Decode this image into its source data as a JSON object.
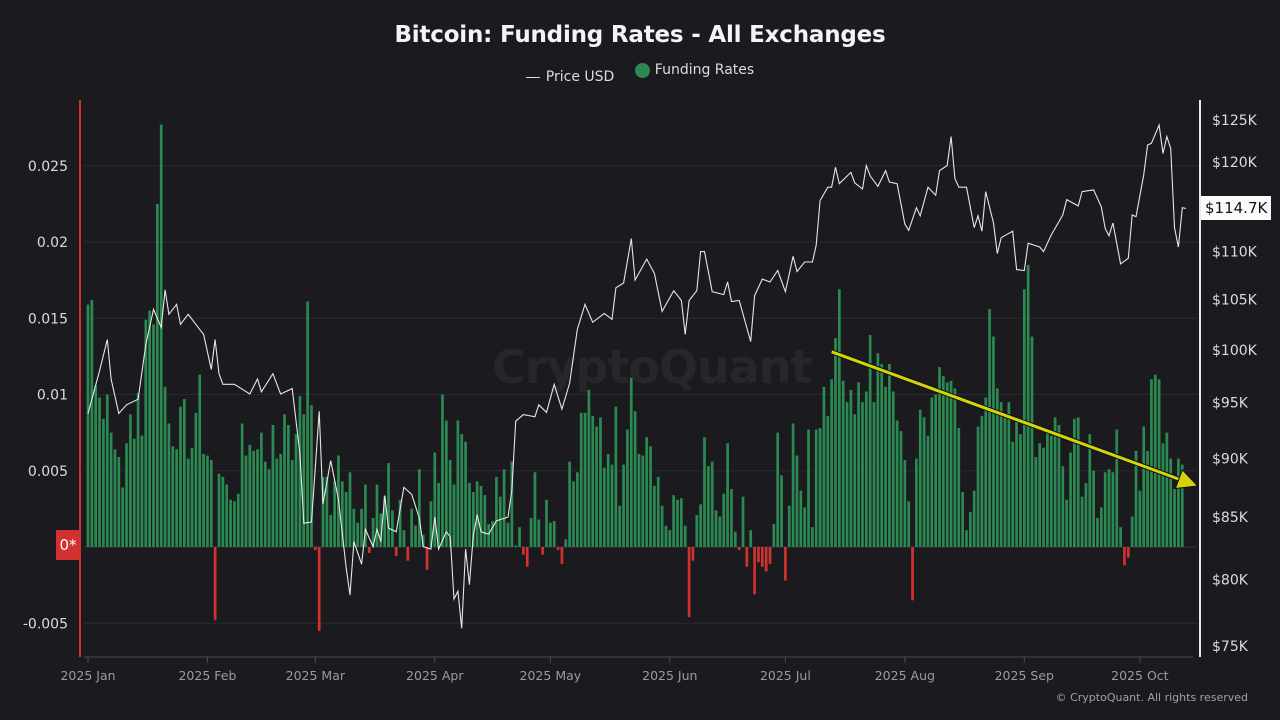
{
  "chart_data": {
    "type": "bar+line",
    "title": "Bitcoin: Funding Rates - All Exchanges",
    "legend": {
      "placement": "top-center",
      "entries": [
        {
          "label": "Price USD",
          "marker": "line",
          "color": "#e6e6e6"
        },
        {
          "label": "Funding Rates",
          "marker": "dot",
          "color": "#2b8a52"
        }
      ]
    },
    "colors": {
      "positive": "#2b8a52",
      "negative": "#d1312f",
      "price": "#e6e6e6",
      "trend_annotation": "#d4d40c",
      "background": "#1b1b1f"
    },
    "x_ticks": [
      "2025 Jan",
      "2025 Feb",
      "2025 Mar",
      "2025 Apr",
      "2025 May",
      "2025 Jun",
      "2025 Jul",
      "2025 Aug",
      "2025 Sep",
      "2025 Oct"
    ],
    "left_axis": {
      "ylim": [
        -0.0073,
        0.0293
      ],
      "ticks": [
        "0.025",
        "0.02",
        "0.015",
        "0.01",
        "0.005",
        "-0.005"
      ],
      "tick_values": [
        0.025,
        0.02,
        0.015,
        0.01,
        0.005,
        -0.005
      ],
      "zero_label": "0*"
    },
    "right_axis": {
      "scale": "log",
      "ylim": [
        75000,
        125000
      ],
      "ticks": [
        "$125K",
        "$120K",
        "$110K",
        "$105K",
        "$100K",
        "$95K",
        "$90K",
        "$85K",
        "$80K",
        "$75K"
      ],
      "tick_values": [
        125000,
        120000,
        110000,
        105000,
        100000,
        95000,
        90000,
        85000,
        80000,
        75000
      ],
      "current_label": "$114.7K",
      "current_value": 114700
    },
    "grid": true,
    "funding_rates": {
      "period": "daily",
      "first_date": "2025-01-01",
      "values": [
        0.0159,
        0.0162,
        0.0106,
        0.0098,
        0.0084,
        0.01,
        0.0075,
        0.0064,
        0.0059,
        0.0039,
        0.0068,
        0.0087,
        0.0071,
        0.0101,
        0.0073,
        0.0149,
        0.0155,
        0.0146,
        0.0225,
        0.0277,
        0.0105,
        0.0081,
        0.0066,
        0.0064,
        0.0092,
        0.0097,
        0.0058,
        0.0065,
        0.0088,
        0.0113,
        0.0061,
        0.006,
        0.0057,
        -0.0048,
        0.0048,
        0.0046,
        0.0041,
        0.0031,
        0.003,
        0.0035,
        0.0081,
        0.006,
        0.0067,
        0.0063,
        0.0064,
        0.0075,
        0.0056,
        0.0051,
        0.008,
        0.0058,
        0.0061,
        0.0087,
        0.008,
        0.0057,
        0.0074,
        0.0099,
        0.0087,
        0.0161,
        0.0093,
        -0.0002,
        -0.0055,
        0.0046,
        0.0046,
        0.0021,
        0.0043,
        0.006,
        0.0043,
        0.0036,
        0.0049,
        0.0025,
        0.0016,
        0.0025,
        0.0041,
        -0.0004,
        0.0019,
        0.0041,
        0.0022,
        0.0033,
        0.0055,
        0.0024,
        -0.0006,
        0.0031,
        0.0011,
        -0.0009,
        0.0025,
        0.0014,
        0.0051,
        0.0008,
        -0.0015,
        0.003,
        0.0062,
        0.0042,
        0.01,
        0.0083,
        0.0057,
        0.0041,
        0.0083,
        0.0074,
        0.0069,
        0.0042,
        0.0036,
        0.0043,
        0.004,
        0.0034,
        0.0015,
        0.0017,
        0.0046,
        0.0033,
        0.0051,
        0.0016,
        0.0056,
        0.0001,
        0.0013,
        -0.0005,
        -0.0013,
        0.0019,
        0.0049,
        0.0018,
        -0.0005,
        0.0031,
        0.0016,
        0.0017,
        -0.0002,
        -0.0011,
        0.0005,
        0.0056,
        0.0043,
        0.0049,
        0.0088,
        0.0088,
        0.0103,
        0.0086,
        0.0079,
        0.0085,
        0.0052,
        0.0061,
        0.0054,
        0.0092,
        0.0027,
        0.0054,
        0.0077,
        0.0111,
        0.0089,
        0.0061,
        0.006,
        0.0072,
        0.0066,
        0.004,
        0.0046,
        0.0027,
        0.0014,
        0.0011,
        0.0034,
        0.0031,
        0.0032,
        0.0014,
        -0.0046,
        -0.0009,
        0.0021,
        0.0028,
        0.0072,
        0.0053,
        0.0056,
        0.0024,
        0.002,
        0.0035,
        0.0068,
        0.0038,
        0.001,
        -0.0002,
        0.0033,
        -0.0013,
        0.0011,
        -0.0031,
        -0.001,
        -0.0013,
        -0.0016,
        -0.0011,
        0.0015,
        0.0075,
        0.0047,
        -0.0022,
        0.0027,
        0.0081,
        0.006,
        0.0037,
        0.0026,
        0.0077,
        0.0013,
        0.0077,
        0.0078,
        0.0105,
        0.0086,
        0.011,
        0.0137,
        0.0169,
        0.0109,
        0.0095,
        0.0103,
        0.0087,
        0.0108,
        0.0095,
        0.0102,
        0.0139,
        0.0095,
        0.0127,
        0.012,
        0.0105,
        0.012,
        0.0102,
        0.0083,
        0.0076,
        0.0057,
        0.003,
        -0.0035,
        0.0058,
        0.009,
        0.0085,
        0.0073,
        0.0098,
        0.01,
        0.0118,
        0.0112,
        0.0108,
        0.0109,
        0.0104,
        0.0078,
        0.0036,
        0.0011,
        0.0023,
        0.0037,
        0.0079,
        0.0086,
        0.0098,
        0.0156,
        0.0138,
        0.0104,
        0.0095,
        0.0087,
        0.0095,
        0.0069,
        0.0082,
        0.0074,
        0.0169,
        0.0185,
        0.0138,
        0.0059,
        0.0068,
        0.0065,
        0.0075,
        0.0073,
        0.0085,
        0.008,
        0.0053,
        0.0031,
        0.0062,
        0.0084,
        0.0085,
        0.0033,
        0.0042,
        0.0074,
        0.005,
        0.0019,
        0.0026,
        0.0049,
        0.0051,
        0.0049,
        0.0077,
        0.0013,
        -0.0012,
        -0.0007,
        0.002,
        0.0063,
        0.0037,
        0.0079,
        0.0063,
        0.011,
        0.0113,
        0.011,
        0.0068,
        0.0075,
        0.0058,
        0.0038,
        0.0058,
        0.0054
      ]
    },
    "price_usd": [
      [
        "2025-01-01",
        94000
      ],
      [
        "2025-01-04",
        98000
      ],
      [
        "2025-01-06",
        101000
      ],
      [
        "2025-01-07",
        97200
      ],
      [
        "2025-01-09",
        94000
      ],
      [
        "2025-01-11",
        94800
      ],
      [
        "2025-01-14",
        95300
      ],
      [
        "2025-01-16",
        100500
      ],
      [
        "2025-01-18",
        104000
      ],
      [
        "2025-01-20",
        102200
      ],
      [
        "2025-01-21",
        106000
      ],
      [
        "2025-01-22",
        103500
      ],
      [
        "2025-01-24",
        104500
      ],
      [
        "2025-01-25",
        102500
      ],
      [
        "2025-01-27",
        103500
      ],
      [
        "2025-01-30",
        102000
      ],
      [
        "2025-01-31",
        101500
      ],
      [
        "2025-02-02",
        98100
      ],
      [
        "2025-02-03",
        101000
      ],
      [
        "2025-02-04",
        97700
      ],
      [
        "2025-02-05",
        96700
      ],
      [
        "2025-02-08",
        96700
      ],
      [
        "2025-02-12",
        95800
      ],
      [
        "2025-02-14",
        97200
      ],
      [
        "2025-02-15",
        96000
      ],
      [
        "2025-02-18",
        97700
      ],
      [
        "2025-02-20",
        95800
      ],
      [
        "2025-02-23",
        96300
      ],
      [
        "2025-02-25",
        90400
      ],
      [
        "2025-02-26",
        84500
      ],
      [
        "2025-02-28",
        84600
      ],
      [
        "2025-03-02",
        94200
      ],
      [
        "2025-03-03",
        86100
      ],
      [
        "2025-03-05",
        89800
      ],
      [
        "2025-03-07",
        86500
      ],
      [
        "2025-03-09",
        80900
      ],
      [
        "2025-03-10",
        78800
      ],
      [
        "2025-03-11",
        83000
      ],
      [
        "2025-03-13",
        81200
      ],
      [
        "2025-03-14",
        84000
      ],
      [
        "2025-03-16",
        82600
      ],
      [
        "2025-03-17",
        84000
      ],
      [
        "2025-03-18",
        83000
      ],
      [
        "2025-03-19",
        86800
      ],
      [
        "2025-03-20",
        84100
      ],
      [
        "2025-03-22",
        83800
      ],
      [
        "2025-03-24",
        87500
      ],
      [
        "2025-03-26",
        86900
      ],
      [
        "2025-03-28",
        84900
      ],
      [
        "2025-03-29",
        82600
      ],
      [
        "2025-03-31",
        82400
      ],
      [
        "2025-04-01",
        85000
      ],
      [
        "2025-04-02",
        82400
      ],
      [
        "2025-04-04",
        83800
      ],
      [
        "2025-04-05",
        83400
      ],
      [
        "2025-04-06",
        78500
      ],
      [
        "2025-04-07",
        79100
      ],
      [
        "2025-04-08",
        76300
      ],
      [
        "2025-04-09",
        82400
      ],
      [
        "2025-04-10",
        79600
      ],
      [
        "2025-04-11",
        83500
      ],
      [
        "2025-04-12",
        85200
      ],
      [
        "2025-04-13",
        83800
      ],
      [
        "2025-04-15",
        83600
      ],
      [
        "2025-04-17",
        84700
      ],
      [
        "2025-04-20",
        85000
      ],
      [
        "2025-04-21",
        87200
      ],
      [
        "2025-04-22",
        93300
      ],
      [
        "2025-04-24",
        93900
      ],
      [
        "2025-04-27",
        93700
      ],
      [
        "2025-04-28",
        94800
      ],
      [
        "2025-04-30",
        94100
      ],
      [
        "2025-05-02",
        96700
      ],
      [
        "2025-05-04",
        94400
      ],
      [
        "2025-05-06",
        96800
      ],
      [
        "2025-05-08",
        102000
      ],
      [
        "2025-05-10",
        104500
      ],
      [
        "2025-05-12",
        102700
      ],
      [
        "2025-05-15",
        103600
      ],
      [
        "2025-05-17",
        103000
      ],
      [
        "2025-05-18",
        106200
      ],
      [
        "2025-05-20",
        106700
      ],
      [
        "2025-05-22",
        111400
      ],
      [
        "2025-05-23",
        107000
      ],
      [
        "2025-05-26",
        109200
      ],
      [
        "2025-05-28",
        107700
      ],
      [
        "2025-05-30",
        103800
      ],
      [
        "2025-06-02",
        105900
      ],
      [
        "2025-06-04",
        104900
      ],
      [
        "2025-06-05",
        101500
      ],
      [
        "2025-06-06",
        104900
      ],
      [
        "2025-06-08",
        105900
      ],
      [
        "2025-06-09",
        110000
      ],
      [
        "2025-06-10",
        110000
      ],
      [
        "2025-06-12",
        105800
      ],
      [
        "2025-06-15",
        105500
      ],
      [
        "2025-06-16",
        106800
      ],
      [
        "2025-06-17",
        104800
      ],
      [
        "2025-06-19",
        104900
      ],
      [
        "2025-06-22",
        100800
      ],
      [
        "2025-06-23",
        105400
      ],
      [
        "2025-06-25",
        107100
      ],
      [
        "2025-06-27",
        106800
      ],
      [
        "2025-06-29",
        108000
      ],
      [
        "2025-07-01",
        105800
      ],
      [
        "2025-07-03",
        109500
      ],
      [
        "2025-07-04",
        107900
      ],
      [
        "2025-07-06",
        108900
      ],
      [
        "2025-07-08",
        108900
      ],
      [
        "2025-07-09",
        110700
      ],
      [
        "2025-07-10",
        115600
      ],
      [
        "2025-07-12",
        117100
      ],
      [
        "2025-07-13",
        117100
      ],
      [
        "2025-07-14",
        119400
      ],
      [
        "2025-07-15",
        117500
      ],
      [
        "2025-07-18",
        118800
      ],
      [
        "2025-07-19",
        117600
      ],
      [
        "2025-07-21",
        116900
      ],
      [
        "2025-07-22",
        119600
      ],
      [
        "2025-07-23",
        118400
      ],
      [
        "2025-07-25",
        117200
      ],
      [
        "2025-07-27",
        119000
      ],
      [
        "2025-07-28",
        117700
      ],
      [
        "2025-07-30",
        117500
      ],
      [
        "2025-08-01",
        113000
      ],
      [
        "2025-08-02",
        112300
      ],
      [
        "2025-08-04",
        114800
      ],
      [
        "2025-08-05",
        113900
      ],
      [
        "2025-08-07",
        117100
      ],
      [
        "2025-08-09",
        116200
      ],
      [
        "2025-08-10",
        119000
      ],
      [
        "2025-08-12",
        119600
      ],
      [
        "2025-08-13",
        123000
      ],
      [
        "2025-08-14",
        118100
      ],
      [
        "2025-08-15",
        117100
      ],
      [
        "2025-08-17",
        117100
      ],
      [
        "2025-08-19",
        112600
      ],
      [
        "2025-08-20",
        113900
      ],
      [
        "2025-08-21",
        112200
      ],
      [
        "2025-08-22",
        116600
      ],
      [
        "2025-08-24",
        113100
      ],
      [
        "2025-08-25",
        109800
      ],
      [
        "2025-08-26",
        111500
      ],
      [
        "2025-08-29",
        112200
      ],
      [
        "2025-08-30",
        108100
      ],
      [
        "2025-09-01",
        108000
      ],
      [
        "2025-09-02",
        110900
      ],
      [
        "2025-09-05",
        110500
      ],
      [
        "2025-09-06",
        110000
      ],
      [
        "2025-09-08",
        111800
      ],
      [
        "2025-09-11",
        114000
      ],
      [
        "2025-09-12",
        115700
      ],
      [
        "2025-09-15",
        115000
      ],
      [
        "2025-09-16",
        116600
      ],
      [
        "2025-09-19",
        116800
      ],
      [
        "2025-09-21",
        114900
      ],
      [
        "2025-09-22",
        112500
      ],
      [
        "2025-09-23",
        111700
      ],
      [
        "2025-09-24",
        113100
      ],
      [
        "2025-09-26",
        108700
      ],
      [
        "2025-09-28",
        109300
      ],
      [
        "2025-09-29",
        114000
      ],
      [
        "2025-09-30",
        113800
      ],
      [
        "2025-10-02",
        118500
      ],
      [
        "2025-10-03",
        122000
      ],
      [
        "2025-10-04",
        122200
      ],
      [
        "2025-10-06",
        124400
      ],
      [
        "2025-10-07",
        121000
      ],
      [
        "2025-10-08",
        123000
      ],
      [
        "2025-10-09",
        121600
      ],
      [
        "2025-10-10",
        112600
      ],
      [
        "2025-10-11",
        110500
      ],
      [
        "2025-10-12",
        114800
      ],
      [
        "2025-10-13",
        114700
      ]
    ],
    "annotations": [
      {
        "type": "arrow",
        "from": [
          "2025-07-13",
          0.0128
        ],
        "to": [
          "2025-10-16",
          0.004
        ],
        "color": "#d4d40c"
      }
    ]
  },
  "watermark": "CryptoQuant",
  "copyright": "© CryptoQuant. All rights reserved"
}
